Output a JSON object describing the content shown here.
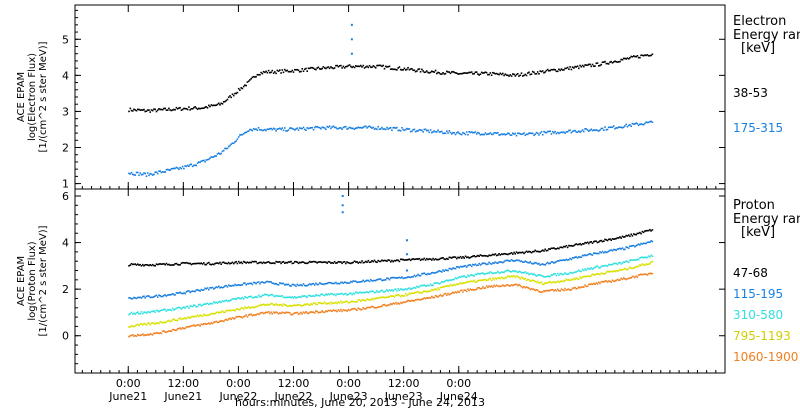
{
  "chart_data": [
    {
      "type": "scatter",
      "panel": "electron",
      "title": "",
      "ylabel_lines": [
        "ACE EPAM",
        "log(Electron Flux)",
        "[1/(cm^2 s ster MeV)]"
      ],
      "side_header": [
        "Electron",
        "Energy ran",
        "[keV]"
      ],
      "ylim": [
        0.85,
        5.95
      ],
      "yticks": [
        1,
        2,
        3,
        4,
        5
      ],
      "ytick_labels": [
        "1",
        "2",
        "3",
        "4",
        "5"
      ],
      "grid": false,
      "series": [
        {
          "name": "38-53",
          "color": "#000000",
          "t": [
            0,
            4,
            8,
            12,
            16,
            20,
            22,
            24,
            26,
            28,
            30,
            32,
            34,
            38,
            42,
            48,
            54,
            60,
            66,
            72,
            78,
            84,
            90,
            96,
            102,
            108,
            114
          ],
          "values": [
            3.05,
            3.02,
            3.05,
            3.08,
            3.1,
            3.2,
            3.4,
            3.6,
            3.8,
            4.05,
            4.1,
            4.1,
            4.12,
            4.15,
            4.2,
            4.25,
            4.25,
            4.18,
            4.1,
            4.05,
            4.05,
            4.0,
            4.1,
            4.2,
            4.3,
            4.45,
            4.6
          ]
        },
        {
          "name": "175-315",
          "color": "#1a7fe0",
          "t": [
            0,
            4,
            8,
            12,
            16,
            20,
            22,
            24,
            26,
            28,
            30,
            32,
            34,
            38,
            42,
            48,
            54,
            60,
            66,
            72,
            78,
            84,
            90,
            96,
            102,
            108,
            114
          ],
          "values": [
            1.3,
            1.25,
            1.35,
            1.45,
            1.6,
            1.85,
            2.05,
            2.3,
            2.5,
            2.52,
            2.5,
            2.5,
            2.5,
            2.52,
            2.55,
            2.55,
            2.55,
            2.5,
            2.45,
            2.4,
            2.4,
            2.35,
            2.4,
            2.45,
            2.5,
            2.6,
            2.7
          ]
        }
      ],
      "spikes": [
        {
          "t": 48.5,
          "values": [
            5.4,
            5.0,
            4.6
          ],
          "color": "#1a7fe0"
        }
      ]
    },
    {
      "type": "scatter",
      "panel": "proton",
      "title": "",
      "ylabel_lines": [
        "ACE EPAM",
        "log(Proton Flux)",
        "[1/(cm^2 s ster MeV)]"
      ],
      "side_header": [
        "Proton",
        "Energy ran",
        "[keV]"
      ],
      "ylim": [
        -1.6,
        6.3
      ],
      "yticks": [
        0,
        2,
        4,
        6
      ],
      "ytick_labels": [
        "0",
        "2",
        "4",
        "6"
      ],
      "grid": false,
      "series": [
        {
          "name": "47-68",
          "color": "#000000",
          "t": [
            0,
            6,
            12,
            18,
            24,
            30,
            36,
            42,
            48,
            54,
            60,
            66,
            72,
            78,
            84,
            90,
            96,
            102,
            108,
            114
          ],
          "values": [
            3.05,
            3.05,
            3.1,
            3.1,
            3.15,
            3.15,
            3.15,
            3.15,
            3.15,
            3.2,
            3.25,
            3.3,
            3.35,
            3.45,
            3.55,
            3.65,
            3.85,
            4.05,
            4.25,
            4.55
          ]
        },
        {
          "name": "115-195",
          "color": "#1a7fe0",
          "t": [
            0,
            6,
            12,
            18,
            24,
            30,
            36,
            42,
            48,
            54,
            60,
            66,
            72,
            78,
            84,
            90,
            96,
            102,
            108,
            114
          ],
          "values": [
            1.6,
            1.7,
            1.85,
            2.05,
            2.2,
            2.3,
            2.15,
            2.25,
            2.3,
            2.4,
            2.5,
            2.7,
            2.95,
            3.1,
            3.25,
            3.05,
            3.3,
            3.55,
            3.75,
            4.05
          ]
        },
        {
          "name": "310-580",
          "color": "#33e0e0",
          "t": [
            0,
            6,
            12,
            18,
            24,
            30,
            36,
            42,
            48,
            54,
            60,
            66,
            72,
            78,
            84,
            90,
            96,
            102,
            108,
            114
          ],
          "values": [
            0.95,
            1.05,
            1.2,
            1.4,
            1.6,
            1.75,
            1.65,
            1.75,
            1.8,
            1.9,
            2.0,
            2.2,
            2.5,
            2.7,
            2.8,
            2.55,
            2.7,
            2.95,
            3.15,
            3.45
          ]
        },
        {
          "name": "795-1193",
          "color": "#d8e000",
          "t": [
            0,
            6,
            12,
            18,
            24,
            30,
            36,
            42,
            48,
            54,
            60,
            66,
            72,
            78,
            84,
            90,
            96,
            102,
            108,
            114
          ],
          "values": [
            0.4,
            0.55,
            0.75,
            0.95,
            1.15,
            1.35,
            1.3,
            1.4,
            1.45,
            1.6,
            1.75,
            1.95,
            2.25,
            2.4,
            2.55,
            2.25,
            2.4,
            2.65,
            2.85,
            3.15
          ]
        },
        {
          "name": "1060-1900",
          "color": "#f08020",
          "t": [
            0,
            6,
            12,
            18,
            24,
            30,
            36,
            42,
            48,
            54,
            60,
            66,
            72,
            78,
            84,
            90,
            96,
            102,
            108,
            114
          ],
          "values": [
            0.0,
            0.1,
            0.35,
            0.55,
            0.8,
            1.0,
            0.95,
            1.05,
            1.1,
            1.25,
            1.45,
            1.65,
            1.9,
            2.1,
            2.2,
            1.9,
            2.0,
            2.25,
            2.45,
            2.7
          ]
        }
      ],
      "spikes": [
        {
          "t": 46.5,
          "values": [
            6.0,
            5.6,
            5.3
          ],
          "color": "#1a7fe0"
        },
        {
          "t": 60.5,
          "values": [
            4.1,
            3.5,
            2.8
          ],
          "color": "#1a7fe0"
        }
      ]
    }
  ],
  "time_axis": {
    "t_min": -11.6,
    "t_max": 130,
    "ticks": [
      {
        "t": 0,
        "label": "0:00",
        "date": "June21"
      },
      {
        "t": 12,
        "label": "12:00",
        "date": "June21"
      },
      {
        "t": 24,
        "label": "0:00",
        "date": "June22"
      },
      {
        "t": 36,
        "label": "12:00",
        "date": "June22"
      },
      {
        "t": 48,
        "label": "0:00",
        "date": "June23"
      },
      {
        "t": 60,
        "label": "12:00",
        "date": "June23"
      },
      {
        "t": 72,
        "label": "0:00",
        "date": "June24"
      }
    ],
    "xlabel": "hours:minutes, June 20, 2013 - June 24, 2013"
  }
}
